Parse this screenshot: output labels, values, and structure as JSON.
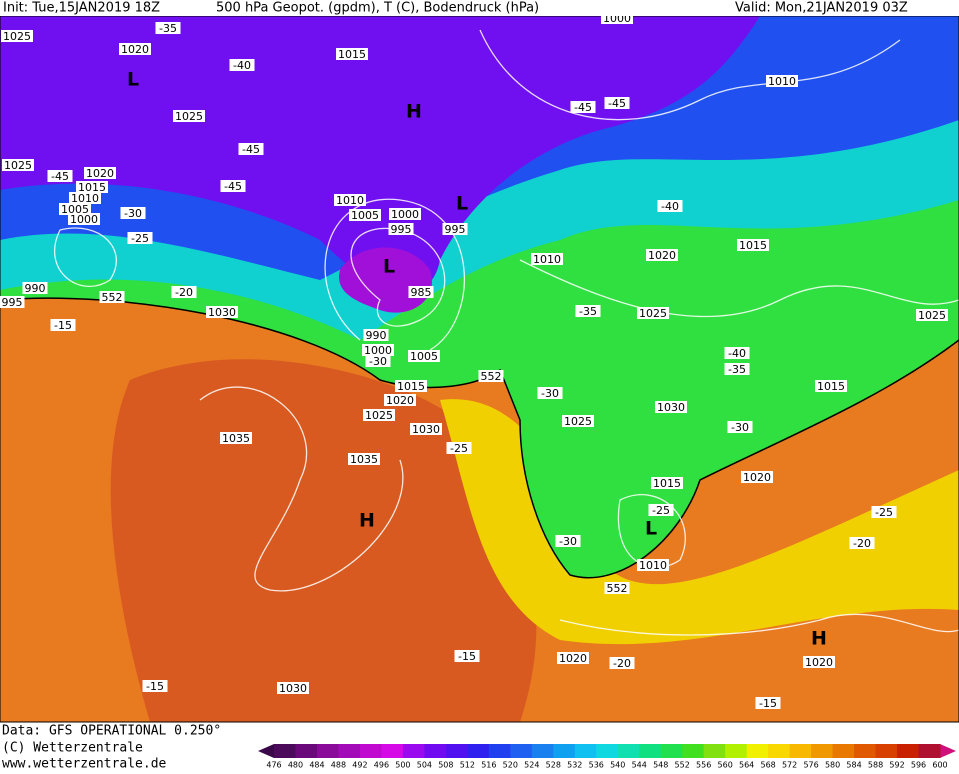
{
  "header": {
    "init": "Init: Tue,15JAN2019 18Z",
    "product": "500 hPa Geopot. (gpdm), T (C), Bodendruck (hPa)",
    "valid": "Valid: Mon,21JAN2019 03Z"
  },
  "footer": {
    "data": "Data: GFS OPERATIONAL 0.250°",
    "copyright": "(C) Wetterzentrale",
    "url": "www.wetterzentrale.de"
  },
  "map": {
    "labels": [
      "1025",
      "-35",
      "1020",
      "1015",
      "-40",
      "1010",
      "1000",
      "-45",
      "-45",
      "1025",
      "-45",
      "-45",
      "1025",
      "-45",
      "1020",
      "1015",
      "1010",
      "1005",
      "1000",
      "-30",
      "-25",
      "1010",
      "1005",
      "1000",
      "995",
      "995",
      "-40",
      "1015",
      "1020",
      "1010",
      "985",
      "990",
      "552",
      "995",
      "-20",
      "1030",
      "-15",
      "-35",
      "1025",
      "1025",
      "990",
      "1000",
      "-30",
      "1005",
      "-40",
      "-35",
      "552",
      "1015",
      "1020",
      "1015",
      "-30",
      "1025",
      "1030",
      "1025",
      "1030",
      "-30",
      "1035",
      "-25",
      "1035",
      "1020",
      "1015",
      "-25",
      "-25",
      "-30",
      "-20",
      "1010",
      "552",
      "-15",
      "1020",
      "-20",
      "1020",
      "-15",
      "1030",
      "-15"
    ],
    "centers": [
      "L",
      "H",
      "L",
      "L",
      "H",
      "L",
      "H"
    ]
  },
  "colorbar": {
    "labels": [
      476,
      480,
      484,
      488,
      492,
      496,
      500,
      504,
      508,
      512,
      516,
      520,
      524,
      528,
      532,
      536,
      540,
      544,
      548,
      552,
      556,
      560,
      564,
      568,
      572,
      576,
      580,
      584,
      588,
      592,
      596,
      600
    ],
    "colors": [
      "#4b0a5a",
      "#6a0a7a",
      "#8a0a9a",
      "#a30ab8",
      "#c00ad0",
      "#d60ae6",
      "#9a0aee",
      "#700af0",
      "#5010f0",
      "#3020f0",
      "#2040f0",
      "#2060f0",
      "#1a80f0",
      "#10a0f0",
      "#10c0f0",
      "#10d8e0",
      "#10e0b0",
      "#10e080",
      "#20e050",
      "#40e020",
      "#80e010",
      "#b0f000",
      "#f0f000",
      "#f8d800",
      "#f8b800",
      "#f09800",
      "#e87800",
      "#e05800",
      "#d84000",
      "#c82000",
      "#b01030"
    ],
    "low_color": "#3a0848",
    "high_color": "#d0107a"
  }
}
